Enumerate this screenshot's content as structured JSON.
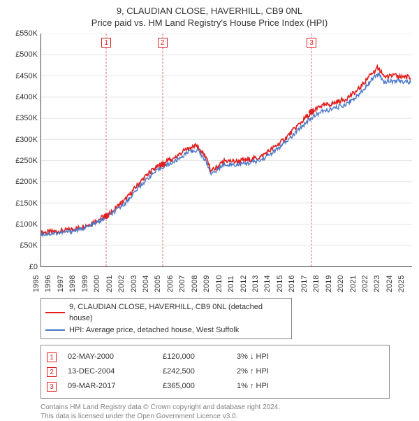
{
  "title_line1": "9, CLAUDIAN CLOSE, HAVERHILL, CB9 0NL",
  "title_line2": "Price paid vs. HM Land Registry's House Price Index (HPI)",
  "chart": {
    "type": "line",
    "background_color": "#ffffff",
    "grid_color": "#e5e5e5",
    "axis_color": "#444444",
    "label_fontsize": 11,
    "label_color": "#333333",
    "x": {
      "min": 1995,
      "max": 2025.5,
      "ticks": [
        1995,
        1996,
        1997,
        1998,
        1999,
        2000,
        2001,
        2002,
        2003,
        2004,
        2005,
        2006,
        2007,
        2008,
        2009,
        2010,
        2011,
        2012,
        2013,
        2014,
        2015,
        2016,
        2017,
        2018,
        2019,
        2020,
        2021,
        2022,
        2023,
        2024,
        2025
      ]
    },
    "y": {
      "min": 0,
      "max": 550000,
      "ticks": [
        {
          "v": 0,
          "label": "£0"
        },
        {
          "v": 50000,
          "label": "£50K"
        },
        {
          "v": 100000,
          "label": "£100K"
        },
        {
          "v": 150000,
          "label": "£150K"
        },
        {
          "v": 200000,
          "label": "£200K"
        },
        {
          "v": 250000,
          "label": "£250K"
        },
        {
          "v": 300000,
          "label": "£300K"
        },
        {
          "v": 350000,
          "label": "£350K"
        },
        {
          "v": 400000,
          "label": "£400K"
        },
        {
          "v": 450000,
          "label": "£450K"
        },
        {
          "v": 500000,
          "label": "£500K"
        },
        {
          "v": 550000,
          "label": "£550K"
        }
      ]
    },
    "series": [
      {
        "name": "price_paid",
        "label": "9, CLAUDIAN CLOSE, HAVERHILL, CB9 0NL (detached house)",
        "color": "#e02020",
        "line_width": 1.6,
        "noise_amp": 6000,
        "points": [
          [
            1995.0,
            80000
          ],
          [
            1996.0,
            82000
          ],
          [
            1997.0,
            85000
          ],
          [
            1998.0,
            90000
          ],
          [
            1999.0,
            100000
          ],
          [
            2000.0,
            115000
          ],
          [
            2000.34,
            120000
          ],
          [
            2001.0,
            135000
          ],
          [
            2002.0,
            160000
          ],
          [
            2003.0,
            195000
          ],
          [
            2004.0,
            225000
          ],
          [
            2004.95,
            242500
          ],
          [
            2005.5,
            250000
          ],
          [
            2006.0,
            258000
          ],
          [
            2007.0,
            278000
          ],
          [
            2007.8,
            285000
          ],
          [
            2008.5,
            260000
          ],
          [
            2009.0,
            225000
          ],
          [
            2009.5,
            235000
          ],
          [
            2010.0,
            250000
          ],
          [
            2011.0,
            248000
          ],
          [
            2012.0,
            252000
          ],
          [
            2013.0,
            258000
          ],
          [
            2014.0,
            278000
          ],
          [
            2015.0,
            300000
          ],
          [
            2016.0,
            330000
          ],
          [
            2017.0,
            358000
          ],
          [
            2017.19,
            365000
          ],
          [
            2018.0,
            378000
          ],
          [
            2019.0,
            385000
          ],
          [
            2020.0,
            395000
          ],
          [
            2021.0,
            415000
          ],
          [
            2022.0,
            450000
          ],
          [
            2022.7,
            470000
          ],
          [
            2023.2,
            448000
          ],
          [
            2024.0,
            450000
          ],
          [
            2025.0,
            448000
          ],
          [
            2025.4,
            445000
          ]
        ]
      },
      {
        "name": "hpi",
        "label": "HPI: Average price, detached house, West Suffolk",
        "color": "#4a78c8",
        "line_width": 1.4,
        "noise_amp": 5000,
        "points": [
          [
            1995.0,
            76000
          ],
          [
            1996.0,
            78000
          ],
          [
            1997.0,
            81000
          ],
          [
            1998.0,
            86000
          ],
          [
            1999.0,
            95000
          ],
          [
            2000.0,
            110000
          ],
          [
            2001.0,
            128000
          ],
          [
            2002.0,
            152000
          ],
          [
            2003.0,
            186000
          ],
          [
            2004.0,
            215000
          ],
          [
            2005.0,
            235000
          ],
          [
            2006.0,
            248000
          ],
          [
            2007.0,
            268000
          ],
          [
            2007.8,
            275000
          ],
          [
            2008.5,
            252000
          ],
          [
            2009.0,
            218000
          ],
          [
            2009.5,
            228000
          ],
          [
            2010.0,
            242000
          ],
          [
            2011.0,
            240000
          ],
          [
            2012.0,
            244000
          ],
          [
            2013.0,
            250000
          ],
          [
            2014.0,
            268000
          ],
          [
            2015.0,
            290000
          ],
          [
            2016.0,
            318000
          ],
          [
            2017.0,
            346000
          ],
          [
            2018.0,
            365000
          ],
          [
            2019.0,
            372000
          ],
          [
            2020.0,
            382000
          ],
          [
            2021.0,
            402000
          ],
          [
            2022.0,
            435000
          ],
          [
            2022.7,
            455000
          ],
          [
            2023.2,
            436000
          ],
          [
            2024.0,
            438000
          ],
          [
            2025.0,
            436000
          ],
          [
            2025.4,
            434000
          ]
        ]
      }
    ],
    "sale_markers": [
      {
        "n": "1",
        "x": 2000.34,
        "y": 120000
      },
      {
        "n": "2",
        "x": 2004.95,
        "y": 242500
      },
      {
        "n": "3",
        "x": 2017.19,
        "y": 365000
      }
    ],
    "marker_line_color": "#e07070",
    "marker_box_border": "#e02020",
    "marker_dot_color": "#e02020"
  },
  "legend": {
    "border_color": "#888888"
  },
  "sales": [
    {
      "n": "1",
      "date": "02-MAY-2000",
      "price": "£120,000",
      "delta": "3% ↓ HPI"
    },
    {
      "n": "2",
      "date": "13-DEC-2004",
      "price": "£242,500",
      "delta": "2% ↑ HPI"
    },
    {
      "n": "3",
      "date": "09-MAR-2017",
      "price": "£365,000",
      "delta": "1% ↑ HPI"
    }
  ],
  "attribution_line1": "Contains HM Land Registry data © Crown copyright and database right 2024.",
  "attribution_line2": "This data is licensed under the Open Government Licence v3.0."
}
